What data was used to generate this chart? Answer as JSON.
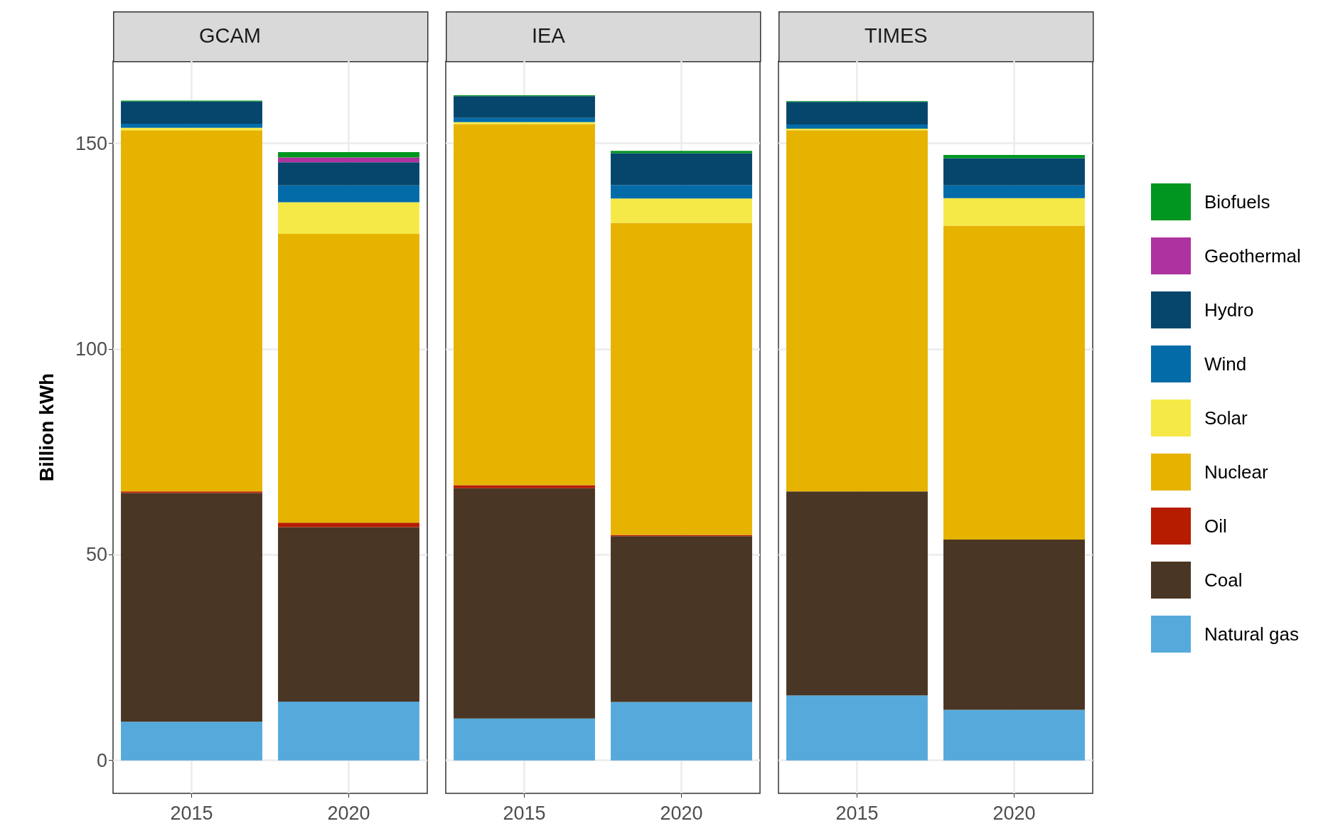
{
  "chart_data": [
    {
      "type": "bar",
      "title": "GCAM",
      "ylabel": "Billion kWh",
      "categories": [
        "2015",
        "2020"
      ],
      "stacked": true,
      "ylim": [
        -8,
        170
      ],
      "yticks": [
        0,
        50,
        100,
        150
      ],
      "grid": true,
      "legend": "right",
      "series": [
        {
          "name": "Natural gas",
          "color": "#56aadb",
          "values": [
            9.4,
            14.3
          ]
        },
        {
          "name": "Coal",
          "color": "#4a3624",
          "values": [
            55.6,
            42.4
          ]
        },
        {
          "name": "Oil",
          "color": "#b51c00",
          "values": [
            0.4,
            1.1
          ]
        },
        {
          "name": "Nuclear",
          "color": "#e5b300",
          "values": [
            87.8,
            70.2
          ]
        },
        {
          "name": "Solar",
          "color": "#f5e948",
          "values": [
            0.6,
            7.7
          ]
        },
        {
          "name": "Wind",
          "color": "#036ca8",
          "values": [
            1.0,
            4.1
          ]
        },
        {
          "name": "Hydro",
          "color": "#06456c",
          "values": [
            5.4,
            5.6
          ]
        },
        {
          "name": "Geothermal",
          "color": "#ae33a0",
          "values": [
            0,
            1.2
          ]
        },
        {
          "name": "Biofuels",
          "color": "#00961f",
          "values": [
            0.2,
            1.3
          ]
        }
      ]
    },
    {
      "type": "bar",
      "title": "IEA",
      "categories": [
        "2015",
        "2020"
      ],
      "stacked": true,
      "ylim": [
        -8,
        170
      ],
      "yticks": [
        0,
        50,
        100,
        150
      ],
      "grid": true,
      "tick_labels": "x",
      "series": [
        {
          "color": "#56aadb",
          "values": [
            10.2,
            14.2
          ]
        },
        {
          "color": "#4a3624",
          "values": [
            56.0,
            40.3
          ]
        },
        {
          "color": "#b51c00",
          "values": [
            0.7,
            0.3
          ]
        },
        {
          "color": "#e5b300",
          "values": [
            87.8,
            75.9
          ]
        },
        {
          "color": "#f5e948",
          "values": [
            0.5,
            5.9
          ]
        },
        {
          "color": "#036ca8",
          "values": [
            1.0,
            3.3
          ]
        },
        {
          "color": "#06456c",
          "values": [
            5.3,
            7.7
          ]
        },
        {
          "color": "#ae33a0",
          "values": [
            0,
            0
          ]
        },
        {
          "color": "#00961f",
          "values": [
            0.2,
            0.6
          ]
        }
      ]
    },
    {
      "type": "bar",
      "title": "TIMES",
      "categories": [
        "2015",
        "2020"
      ],
      "stacked": true,
      "ylim": [
        -8,
        170
      ],
      "yticks": [
        0,
        50,
        100,
        150
      ],
      "grid": true,
      "tick_labels": "x",
      "series": [
        {
          "color": "#56aadb",
          "values": [
            15.8,
            12.3
          ]
        },
        {
          "color": "#4a3624",
          "values": [
            49.6,
            41.4
          ]
        },
        {
          "color": "#b51c00",
          "values": [
            0,
            0
          ]
        },
        {
          "color": "#e5b300",
          "values": [
            87.8,
            76.3
          ]
        },
        {
          "color": "#f5e948",
          "values": [
            0.4,
            6.7
          ]
        },
        {
          "color": "#036ca8",
          "values": [
            1.0,
            3.1
          ]
        },
        {
          "color": "#06456c",
          "values": [
            5.5,
            6.6
          ]
        },
        {
          "color": "#ae33a0",
          "values": [
            0,
            0
          ]
        },
        {
          "color": "#00961f",
          "values": [
            0.2,
            0.8
          ]
        }
      ]
    }
  ]
}
